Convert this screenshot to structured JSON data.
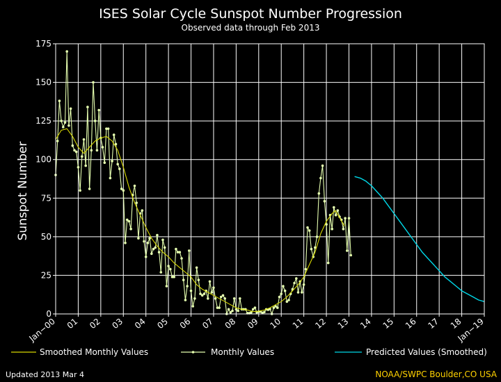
{
  "colors": {
    "background": "#000000",
    "axis": "#ffffff",
    "grid": "#ffffff",
    "smoothed": "#d8d800",
    "monthly": "#e6ffb0",
    "predicted": "#00d8e8",
    "credit": "#ffd200"
  },
  "chart_data": {
    "type": "line",
    "title": "ISES Solar Cycle Sunspot Number Progression",
    "subtitle": "Observed data through Feb 2013",
    "ylabel": "Sunspot Number",
    "xlabel": "",
    "ylim": [
      0,
      175
    ],
    "yticks": [
      0,
      25,
      50,
      75,
      100,
      125,
      150,
      175
    ],
    "xlim": [
      2000.0,
      2019.0
    ],
    "xtick_labels": [
      "Jan−00",
      "01",
      "02",
      "03",
      "04",
      "05",
      "06",
      "07",
      "08",
      "09",
      "10",
      "11",
      "12",
      "13",
      "14",
      "15",
      "16",
      "17",
      "18",
      "Jan−19"
    ],
    "grid": true,
    "legend_position": "bottom",
    "series": [
      {
        "name": "Smoothed Monthly Values",
        "color": "#d8d800",
        "marker": "none",
        "points": [
          [
            2000.0,
            113
          ],
          [
            2000.25,
            119
          ],
          [
            2000.5,
            120
          ],
          [
            2000.75,
            115
          ],
          [
            2001.0,
            108
          ],
          [
            2001.25,
            104
          ],
          [
            2001.5,
            108
          ],
          [
            2001.75,
            112
          ],
          [
            2002.0,
            114
          ],
          [
            2002.25,
            115
          ],
          [
            2002.5,
            112
          ],
          [
            2002.75,
            106
          ],
          [
            2003.0,
            95
          ],
          [
            2003.25,
            82
          ],
          [
            2003.5,
            72
          ],
          [
            2003.75,
            64
          ],
          [
            2004.0,
            56
          ],
          [
            2004.25,
            49
          ],
          [
            2004.5,
            44
          ],
          [
            2004.75,
            40
          ],
          [
            2005.0,
            37
          ],
          [
            2005.25,
            33
          ],
          [
            2005.5,
            30
          ],
          [
            2005.75,
            27
          ],
          [
            2006.0,
            24
          ],
          [
            2006.25,
            19
          ],
          [
            2006.5,
            16
          ],
          [
            2006.75,
            14
          ],
          [
            2007.0,
            12
          ],
          [
            2007.25,
            10
          ],
          [
            2007.5,
            8
          ],
          [
            2007.75,
            6
          ],
          [
            2008.0,
            4
          ],
          [
            2008.25,
            3
          ],
          [
            2008.5,
            2.5
          ],
          [
            2008.75,
            1.5
          ],
          [
            2009.0,
            1.7
          ],
          [
            2009.25,
            2.5
          ],
          [
            2009.5,
            4
          ],
          [
            2009.75,
            6
          ],
          [
            2010.0,
            8
          ],
          [
            2010.25,
            11
          ],
          [
            2010.5,
            15
          ],
          [
            2010.75,
            19
          ],
          [
            2011.0,
            24
          ],
          [
            2011.25,
            32
          ],
          [
            2011.5,
            40
          ],
          [
            2011.75,
            52
          ],
          [
            2012.0,
            60
          ],
          [
            2012.25,
            65
          ],
          [
            2012.4,
            67
          ],
          [
            2012.6,
            62
          ],
          [
            2012.8,
            57
          ]
        ]
      },
      {
        "name": "Monthly Values",
        "color": "#e6ffb0",
        "marker": "dot",
        "points": [
          [
            2000.0,
            90
          ],
          [
            2000.083,
            112
          ],
          [
            2000.167,
            138
          ],
          [
            2000.25,
            125
          ],
          [
            2000.333,
            121
          ],
          [
            2000.417,
            124
          ],
          [
            2000.5,
            170
          ],
          [
            2000.583,
            122
          ],
          [
            2000.667,
            133
          ],
          [
            2000.75,
            109
          ],
          [
            2000.833,
            106
          ],
          [
            2000.917,
            105
          ],
          [
            2001.0,
            95
          ],
          [
            2001.083,
            80
          ],
          [
            2001.167,
            102
          ],
          [
            2001.25,
            113
          ],
          [
            2001.333,
            96
          ],
          [
            2001.417,
            134
          ],
          [
            2001.5,
            81
          ],
          [
            2001.583,
            106
          ],
          [
            2001.667,
            150
          ],
          [
            2001.75,
            125
          ],
          [
            2001.833,
            106
          ],
          [
            2001.917,
            132
          ],
          [
            2002.0,
            114
          ],
          [
            2002.083,
            108
          ],
          [
            2002.167,
            98
          ],
          [
            2002.25,
            120
          ],
          [
            2002.333,
            120
          ],
          [
            2002.417,
            88
          ],
          [
            2002.5,
            99
          ],
          [
            2002.583,
            116
          ],
          [
            2002.667,
            110
          ],
          [
            2002.75,
            97
          ],
          [
            2002.833,
            94
          ],
          [
            2002.917,
            81
          ],
          [
            2003.0,
            80
          ],
          [
            2003.083,
            46
          ],
          [
            2003.167,
            61
          ],
          [
            2003.25,
            60
          ],
          [
            2003.333,
            55
          ],
          [
            2003.417,
            77
          ],
          [
            2003.5,
            83
          ],
          [
            2003.583,
            72
          ],
          [
            2003.667,
            49
          ],
          [
            2003.75,
            65
          ],
          [
            2003.833,
            67
          ],
          [
            2003.917,
            47
          ],
          [
            2004.0,
            37
          ],
          [
            2004.083,
            46
          ],
          [
            2004.167,
            49
          ],
          [
            2004.25,
            39
          ],
          [
            2004.333,
            42
          ],
          [
            2004.417,
            43
          ],
          [
            2004.5,
            51
          ],
          [
            2004.583,
            40
          ],
          [
            2004.667,
            27
          ],
          [
            2004.75,
            48
          ],
          [
            2004.833,
            43
          ],
          [
            2004.917,
            18
          ],
          [
            2005.0,
            31
          ],
          [
            2005.083,
            29
          ],
          [
            2005.167,
            24
          ],
          [
            2005.25,
            24
          ],
          [
            2005.333,
            42
          ],
          [
            2005.417,
            40
          ],
          [
            2005.5,
            40
          ],
          [
            2005.583,
            36
          ],
          [
            2005.667,
            22
          ],
          [
            2005.75,
            9
          ],
          [
            2005.833,
            18
          ],
          [
            2005.917,
            41
          ],
          [
            2006.0,
            15
          ],
          [
            2006.083,
            5
          ],
          [
            2006.167,
            10
          ],
          [
            2006.25,
            30
          ],
          [
            2006.333,
            22
          ],
          [
            2006.417,
            13
          ],
          [
            2006.5,
            12
          ],
          [
            2006.583,
            13
          ],
          [
            2006.667,
            15
          ],
          [
            2006.75,
            10
          ],
          [
            2006.833,
            21
          ],
          [
            2006.917,
            14
          ],
          [
            2007.0,
            17
          ],
          [
            2007.083,
            10
          ],
          [
            2007.167,
            4
          ],
          [
            2007.25,
            4
          ],
          [
            2007.333,
            11
          ],
          [
            2007.417,
            12
          ],
          [
            2007.5,
            10
          ],
          [
            2007.583,
            0
          ],
          [
            2007.667,
            3
          ],
          [
            2007.75,
            1
          ],
          [
            2007.833,
            2
          ],
          [
            2007.917,
            10
          ],
          [
            2008.0,
            3
          ],
          [
            2008.083,
            2
          ],
          [
            2008.167,
            10
          ],
          [
            2008.25,
            3
          ],
          [
            2008.333,
            3
          ],
          [
            2008.417,
            3
          ],
          [
            2008.5,
            0.5
          ],
          [
            2008.583,
            0.5
          ],
          [
            2008.667,
            1
          ],
          [
            2008.75,
            3
          ],
          [
            2008.833,
            4
          ],
          [
            2008.917,
            1
          ],
          [
            2009.0,
            1.5
          ],
          [
            2009.083,
            1.5
          ],
          [
            2009.167,
            0.7
          ],
          [
            2009.25,
            1.2
          ],
          [
            2009.333,
            3
          ],
          [
            2009.417,
            2.7
          ],
          [
            2009.5,
            3.2
          ],
          [
            2009.583,
            0
          ],
          [
            2009.667,
            4
          ],
          [
            2009.75,
            5
          ],
          [
            2009.833,
            4
          ],
          [
            2009.917,
            11
          ],
          [
            2010.0,
            13
          ],
          [
            2010.083,
            18
          ],
          [
            2010.167,
            15
          ],
          [
            2010.25,
            8
          ],
          [
            2010.333,
            9
          ],
          [
            2010.417,
            13
          ],
          [
            2010.5,
            16
          ],
          [
            2010.583,
            20
          ],
          [
            2010.667,
            23
          ],
          [
            2010.75,
            14
          ],
          [
            2010.833,
            21
          ],
          [
            2010.917,
            14
          ],
          [
            2011.0,
            19
          ],
          [
            2011.083,
            29
          ],
          [
            2011.167,
            56
          ],
          [
            2011.25,
            54
          ],
          [
            2011.333,
            42
          ],
          [
            2011.417,
            37
          ],
          [
            2011.5,
            43
          ],
          [
            2011.583,
            50
          ],
          [
            2011.667,
            78
          ],
          [
            2011.75,
            88
          ],
          [
            2011.833,
            96
          ],
          [
            2011.917,
            73
          ],
          [
            2012.0,
            58
          ],
          [
            2012.083,
            33
          ],
          [
            2012.167,
            64
          ],
          [
            2012.25,
            55
          ],
          [
            2012.333,
            69
          ],
          [
            2012.417,
            64
          ],
          [
            2012.5,
            67
          ],
          [
            2012.583,
            63
          ],
          [
            2012.667,
            61
          ],
          [
            2012.75,
            55
          ],
          [
            2012.833,
            62
          ],
          [
            2012.917,
            41
          ],
          [
            2013.0,
            62
          ],
          [
            2013.083,
            38
          ]
        ]
      },
      {
        "name": "Predicted Values (Smoothed)",
        "color": "#00d8e8",
        "marker": "none",
        "points": [
          [
            2013.25,
            89
          ],
          [
            2013.5,
            88
          ],
          [
            2013.75,
            86
          ],
          [
            2014.0,
            83
          ],
          [
            2014.25,
            79
          ],
          [
            2014.5,
            75
          ],
          [
            2014.75,
            70
          ],
          [
            2015.0,
            65
          ],
          [
            2015.25,
            60
          ],
          [
            2015.5,
            55
          ],
          [
            2015.75,
            50
          ],
          [
            2016.0,
            45
          ],
          [
            2016.25,
            40
          ],
          [
            2016.5,
            36
          ],
          [
            2016.75,
            32
          ],
          [
            2017.0,
            28
          ],
          [
            2017.25,
            24
          ],
          [
            2017.5,
            21
          ],
          [
            2017.75,
            18
          ],
          [
            2018.0,
            15
          ],
          [
            2018.25,
            13
          ],
          [
            2018.5,
            11
          ],
          [
            2018.75,
            9
          ],
          [
            2019.0,
            8
          ]
        ]
      }
    ]
  },
  "footer": {
    "updated": "Updated 2013 Mar  4",
    "credit": "NOAA/SWPC Boulder,CO USA"
  }
}
